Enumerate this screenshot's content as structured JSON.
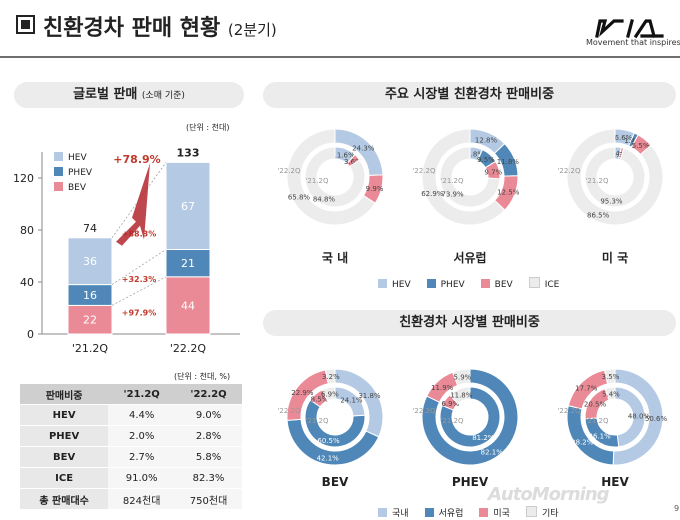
{
  "header": {
    "title": "친환경차 판매 현황",
    "subtitle": "(2분기)",
    "logo_tagline": "Movement that inspires"
  },
  "global_panel": {
    "title": "글로벌 판매",
    "title_note": "(소매 기준)",
    "unit": "(단위 : 천대)",
    "table_unit": "(단위 : 천대, %)"
  },
  "chart_data": [
    {
      "type": "bar",
      "stacked": true,
      "categories": [
        "'21.2Q",
        "'22.2Q"
      ],
      "series": [
        {
          "name": "BEV",
          "color": "#ea8a96",
          "values": [
            22,
            44
          ]
        },
        {
          "name": "PHEV",
          "color": "#4f88b8",
          "values": [
            16,
            21
          ]
        },
        {
          "name": "HEV",
          "color": "#b4cae4",
          "values": [
            36,
            67
          ]
        }
      ],
      "totals": [
        74,
        133
      ],
      "total_growth": "+78.9%",
      "segment_growth": [
        {
          "series": "HEV",
          "label": "+88.3%"
        },
        {
          "series": "PHEV",
          "label": "+32.3%"
        },
        {
          "series": "BEV",
          "label": "+97.9%"
        }
      ],
      "yticks": [
        0,
        40,
        80,
        120
      ],
      "ylim": [
        0,
        140
      ],
      "grid": false,
      "legend": "top-left",
      "unit": "(단위 : 천대)"
    },
    {
      "type": "table",
      "columns": [
        "판매비중",
        "'21.2Q",
        "'22.2Q"
      ],
      "rows": [
        [
          "HEV",
          "4.4%",
          "9.0%"
        ],
        [
          "PHEV",
          "2.0%",
          "2.8%"
        ],
        [
          "BEV",
          "2.7%",
          "5.8%"
        ],
        [
          "ICE",
          "91.0%",
          "82.3%"
        ],
        [
          "총 판매대수",
          "824천대",
          "750천대"
        ]
      ]
    },
    {
      "type": "pie",
      "style": "double-donut",
      "section": "주요 시장별 친환경차 판매비중",
      "legend": [
        "HEV",
        "PHEV",
        "BEV",
        "ICE"
      ],
      "legend_colors": [
        "#b4cae4",
        "#4f88b8",
        "#ea8a96",
        "#ececec"
      ],
      "outer_ring": "'22.2Q",
      "inner_ring": "'21.2Q",
      "donuts": [
        {
          "label": "국  내",
          "outer": {
            "HEV": 24.3,
            "PHEV": 0,
            "BEV": 9.9,
            "ICE": 65.8
          },
          "inner": {
            "HEV": 11.6,
            "PHEV": 0,
            "BEV": 3.6,
            "ICE": 84.8
          }
        },
        {
          "label": "서유럽",
          "outer": {
            "HEV": 12.8,
            "PHEV": 11.8,
            "BEV": 12.5,
            "ICE": 62.9
          },
          "inner": {
            "HEV": 6.8,
            "PHEV": 9.5,
            "BEV": 9.7,
            "ICE": 73.9
          }
        },
        {
          "label": "미  국",
          "outer": {
            "HEV": 6.6,
            "PHEV": 1.4,
            "BEV": 5.5,
            "ICE": 86.5
          },
          "inner": {
            "HEV": 3.4,
            "PHEV": 0,
            "BEV": 1.3,
            "ICE": 95.3
          }
        }
      ]
    },
    {
      "type": "pie",
      "style": "double-donut",
      "section": "친환경차 시장별 판매비중",
      "legend": [
        "국내",
        "서유럽",
        "미국",
        "기타"
      ],
      "legend_colors": [
        "#b4cae4",
        "#4f88b8",
        "#ea8a96",
        "#ececec"
      ],
      "outer_ring": "'22.2Q",
      "inner_ring": "'21.2Q",
      "donuts": [
        {
          "label": "BEV",
          "outer": {
            "국내": 31.8,
            "서유럽": 42.1,
            "미국": 22.9,
            "기타": 3.2
          },
          "inner": {
            "국내": 24.1,
            "서유럽": 60.5,
            "미국": 8.5,
            "기타": 6.9
          }
        },
        {
          "label": "PHEV",
          "outer": {
            "국내": 0,
            "서유럽": 82.1,
            "미국": 11.9,
            "기타": 5.9
          },
          "inner": {
            "국내": 0,
            "서유럽": 81.2,
            "미국": 6.9,
            "기타": 11.8
          }
        },
        {
          "label": "HEV",
          "outer": {
            "국내": 50.6,
            "서유럽": 28.2,
            "미국": 17.7,
            "기타": 3.5
          },
          "inner": {
            "국내": 48.0,
            "서유럽": 26.1,
            "미국": 20.5,
            "기타": 5.4
          }
        }
      ]
    }
  ],
  "watermark": "AutoMorning",
  "page_number": "9"
}
